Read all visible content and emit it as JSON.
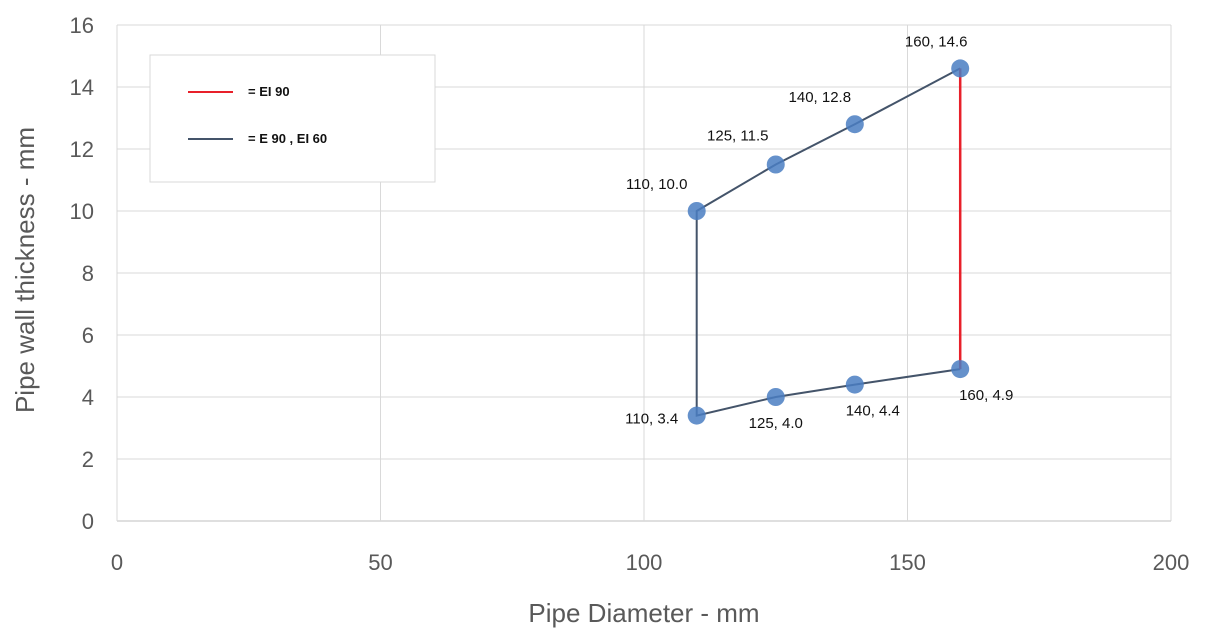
{
  "chart_data": {
    "type": "scatter",
    "xlabel": "Pipe Diameter - mm",
    "ylabel": "Pipe wall thickness - mm",
    "xlim": [
      0,
      200
    ],
    "ylim": [
      0,
      16
    ],
    "x_ticks": [
      "0",
      "50",
      "100",
      "150",
      "200"
    ],
    "y_ticks": [
      "0",
      "2",
      "4",
      "6",
      "8",
      "10",
      "12",
      "14",
      "16"
    ],
    "grid": true,
    "legend_position": "top-left",
    "points": [
      {
        "x": 110,
        "y": 10.0,
        "label": "110, 10.0"
      },
      {
        "x": 125,
        "y": 11.5,
        "label": "125, 11.5"
      },
      {
        "x": 140,
        "y": 12.8,
        "label": "140, 12.8"
      },
      {
        "x": 160,
        "y": 14.6,
        "label": "160, 14.6"
      },
      {
        "x": 110,
        "y": 3.4,
        "label": "110, 3.4"
      },
      {
        "x": 125,
        "y": 4.0,
        "label": "125, 4.0"
      },
      {
        "x": 140,
        "y": 4.4,
        "label": "140, 4.4"
      },
      {
        "x": 160,
        "y": 4.9,
        "label": "160, 4.9"
      }
    ],
    "series": [
      {
        "name": "= EI 90",
        "color": "#e8202a",
        "x": [
          160,
          160
        ],
        "y": [
          4.9,
          14.6
        ]
      },
      {
        "name": "= E 90 , EI 60",
        "color": "#44546a",
        "x": [
          160,
          140,
          125,
          110,
          110,
          125,
          140,
          160
        ],
        "y": [
          14.6,
          12.8,
          11.5,
          10.0,
          3.4,
          4.0,
          4.4,
          4.9
        ]
      }
    ],
    "marker_color": "#4a7ec2"
  }
}
